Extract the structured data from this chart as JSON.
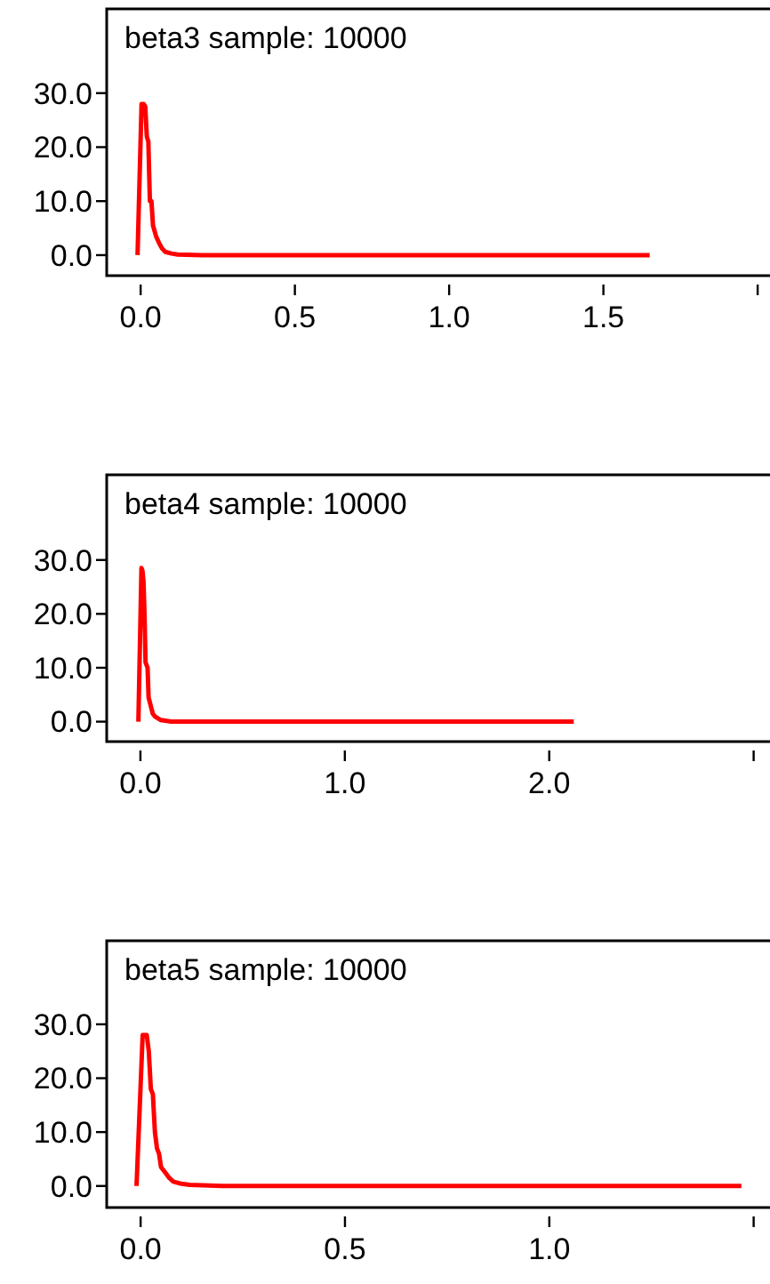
{
  "chart_data": [
    {
      "type": "line",
      "title": "beta3 sample: 10000",
      "xlim": [
        -0.11,
        2.04
      ],
      "ylim": [
        -3.8,
        45.6
      ],
      "xticks": [
        {
          "value": 0,
          "label": "0.0"
        },
        {
          "value": 0.5,
          "label": "0.5"
        },
        {
          "value": 1,
          "label": "1.0"
        },
        {
          "value": 1.5,
          "label": "1.5"
        },
        {
          "value": 2,
          "label": null
        }
      ],
      "yticks": [
        {
          "value": 0,
          "label": "0.0"
        },
        {
          "value": 10,
          "label": "10.0"
        },
        {
          "value": 20,
          "label": "20.0"
        },
        {
          "value": 30,
          "label": "30.0"
        }
      ],
      "line_style": "solid",
      "series": [
        {
          "color": "#ff0000",
          "x": [
            -0.01,
            0.003,
            0.01,
            0.015,
            0.02,
            0.025,
            0.03,
            0.035,
            0.04,
            0.05,
            0.06,
            0.07,
            0.08,
            0.1,
            0.12,
            0.2,
            1.65
          ],
          "values": [
            0,
            28,
            28,
            27.5,
            22,
            21,
            10,
            10,
            5.5,
            3.5,
            2.2,
            1.2,
            0.6,
            0.3,
            0.1,
            0,
            0
          ]
        }
      ]
    },
    {
      "type": "line",
      "title": "beta4 sample: 10000",
      "xlim": [
        -0.165,
        3.08
      ],
      "ylim": [
        -3.7,
        45.8
      ],
      "xticks": [
        {
          "value": 0,
          "label": "0.0"
        },
        {
          "value": 1,
          "label": "1.0"
        },
        {
          "value": 2,
          "label": "2.0"
        },
        {
          "value": 3,
          "label": null
        }
      ],
      "yticks": [
        {
          "value": 0,
          "label": "0.0"
        },
        {
          "value": 10,
          "label": "10.0"
        },
        {
          "value": 20,
          "label": "20.0"
        },
        {
          "value": 30,
          "label": "30.0"
        }
      ],
      "line_style": "solid",
      "series": [
        {
          "color": "#ff0000",
          "x": [
            -0.01,
            0.005,
            0.01,
            0.015,
            0.02,
            0.025,
            0.035,
            0.04,
            0.05,
            0.06,
            0.07,
            0.1,
            0.15,
            2.12
          ],
          "values": [
            0,
            28.5,
            28,
            26,
            20,
            11,
            10,
            4.5,
            3,
            1.5,
            1,
            0.3,
            0,
            0
          ]
        }
      ]
    },
    {
      "type": "line",
      "title": "beta5 sample: 10000",
      "xlim": [
        -0.083,
        1.54
      ],
      "ylim": [
        -4,
        45.5
      ],
      "xticks": [
        {
          "value": 0,
          "label": "0.0"
        },
        {
          "value": 0.5,
          "label": "0.5"
        },
        {
          "value": 1,
          "label": "1.0"
        },
        {
          "value": 1.5,
          "label": null
        }
      ],
      "yticks": [
        {
          "value": 0,
          "label": "0.0"
        },
        {
          "value": 10,
          "label": "10.0"
        },
        {
          "value": 20,
          "label": "20.0"
        },
        {
          "value": 30,
          "label": "30.0"
        }
      ],
      "line_style": "solid",
      "series": [
        {
          "color": "#ff0000",
          "x": [
            -0.01,
            0.005,
            0.015,
            0.02,
            0.025,
            0.03,
            0.035,
            0.04,
            0.045,
            0.05,
            0.06,
            0.07,
            0.08,
            0.1,
            0.12,
            0.2,
            1.47
          ],
          "values": [
            0,
            28,
            28,
            25,
            18,
            17,
            10,
            7,
            6,
            3.5,
            2.5,
            1.5,
            0.8,
            0.4,
            0.2,
            0,
            0
          ]
        }
      ]
    }
  ]
}
